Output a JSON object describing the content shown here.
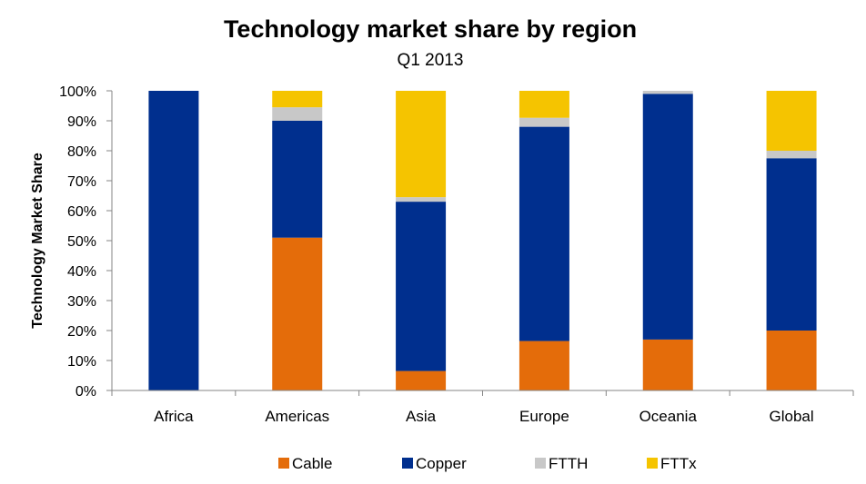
{
  "chart_data": {
    "type": "bar",
    "stacked": true,
    "title": "Technology market share by region",
    "subtitle": "Q1 2013",
    "xlabel": "",
    "ylabel": "Technology Market Share",
    "ylim": [
      0,
      100
    ],
    "y_ticks": [
      "0%",
      "10%",
      "20%",
      "30%",
      "40%",
      "50%",
      "60%",
      "70%",
      "80%",
      "90%",
      "100%"
    ],
    "categories": [
      "Africa",
      "Americas",
      "Asia",
      "Europe",
      "Oceania",
      "Global"
    ],
    "series": [
      {
        "name": "Cable",
        "color": "#E46C0A",
        "values": [
          0,
          51,
          6.5,
          16.5,
          17,
          20
        ]
      },
      {
        "name": "Copper",
        "color": "#002F8E",
        "values": [
          100,
          39,
          56.5,
          71.5,
          82,
          57.5
        ]
      },
      {
        "name": "FTTH",
        "color": "#C8C8C8",
        "values": [
          0,
          4.5,
          1.5,
          3,
          1,
          2.5
        ]
      },
      {
        "name": "FTTx",
        "color": "#F5C400",
        "values": [
          0,
          5.5,
          35.5,
          9,
          0,
          20
        ]
      }
    ],
    "grid": false,
    "legend_position": "bottom"
  }
}
